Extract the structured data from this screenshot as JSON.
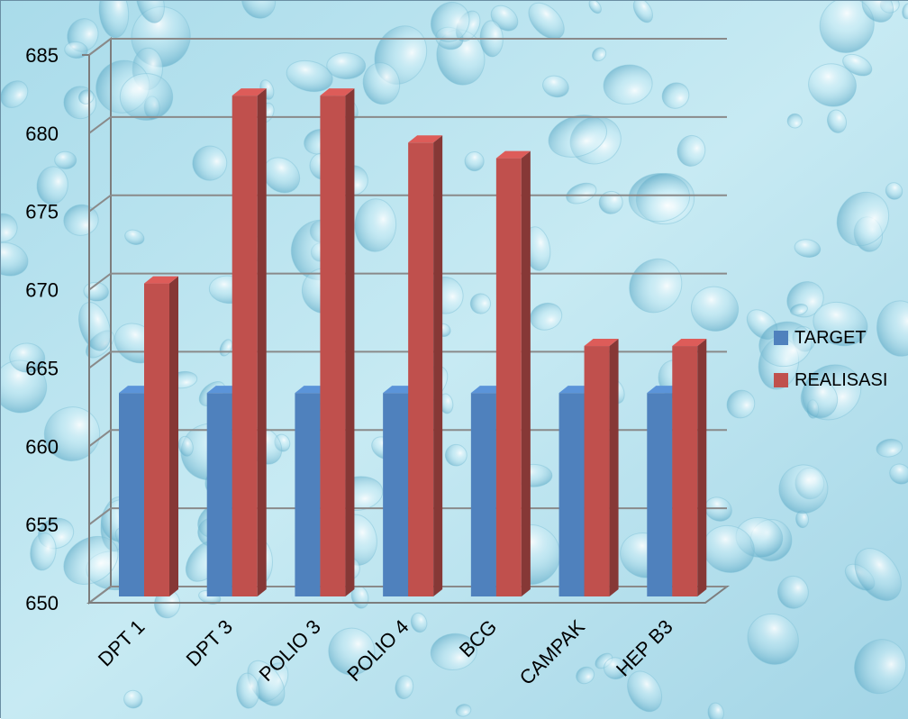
{
  "chart_data": {
    "type": "bar",
    "categories": [
      "DPT 1",
      "DPT 3",
      "POLIO 3",
      "POLIO 4",
      "BCG",
      "CAMPAK",
      "HEP B3"
    ],
    "series": [
      {
        "name": "TARGET",
        "values": [
          663,
          663,
          663,
          663,
          663,
          663,
          663
        ],
        "color": "#4f81bd"
      },
      {
        "name": "REALISASI",
        "values": [
          670,
          682,
          682,
          679,
          678,
          666,
          666
        ],
        "color": "#c0504d"
      }
    ],
    "y_ticks": [
      650,
      655,
      660,
      665,
      670,
      675,
      680,
      685
    ],
    "ylim": [
      650,
      685
    ],
    "title": "",
    "xlabel": "",
    "ylabel": "",
    "grid": true,
    "legend_position": "right",
    "three_d": true,
    "background": "water-droplets",
    "background_color": "#bfe3ef"
  }
}
